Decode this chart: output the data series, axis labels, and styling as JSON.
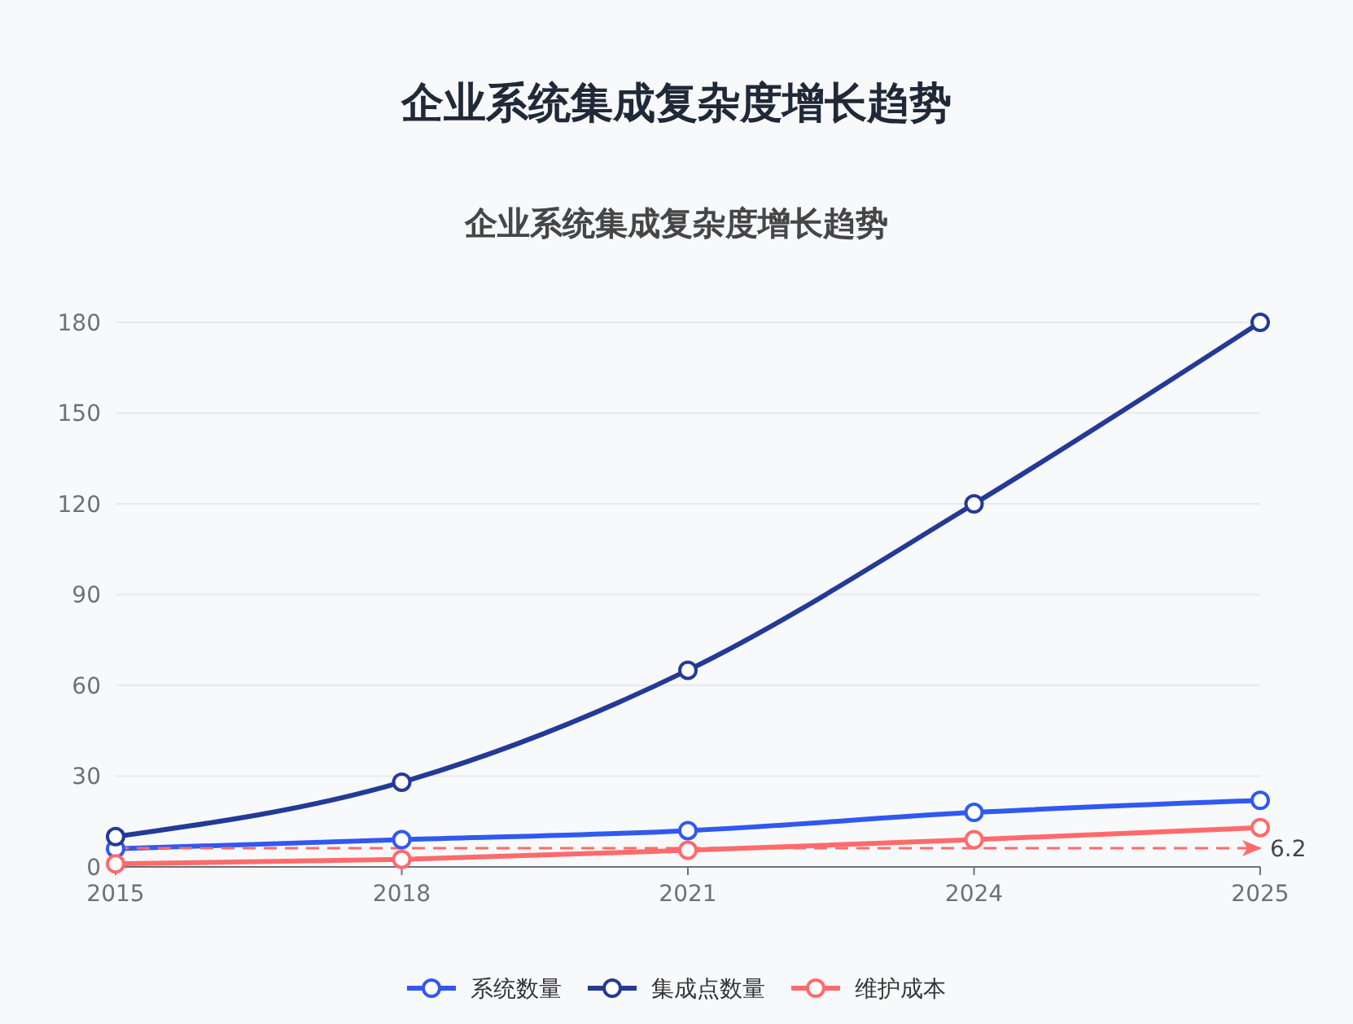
{
  "chart_data": {
    "type": "line",
    "title": "企业系统集成复杂度增长趋势",
    "subtitle": "企业系统集成复杂度增长趋势",
    "categories": [
      "2015",
      "2018",
      "2021",
      "2024",
      "2025"
    ],
    "series": [
      {
        "name": "系统数量",
        "color": "#3059f0",
        "values": [
          6,
          9,
          12,
          18,
          22
        ]
      },
      {
        "name": "集成点数量",
        "color": "#233a96",
        "values": [
          10,
          28,
          65,
          120,
          180
        ]
      },
      {
        "name": "维护成本",
        "color": "#ff6b6b",
        "values": [
          1,
          2.5,
          5.5,
          9,
          13
        ]
      }
    ],
    "ylim": [
      0,
      180
    ],
    "yticks": [
      0,
      30,
      60,
      90,
      120,
      150,
      180
    ],
    "grid": "y",
    "legend": "bottom",
    "marker": "circle",
    "line_style": "solid",
    "ref_lines": [
      {
        "axis": "y",
        "value": 6.2,
        "label": "6.2",
        "color": "#ff6b6b",
        "line_style": "dashed"
      }
    ]
  }
}
